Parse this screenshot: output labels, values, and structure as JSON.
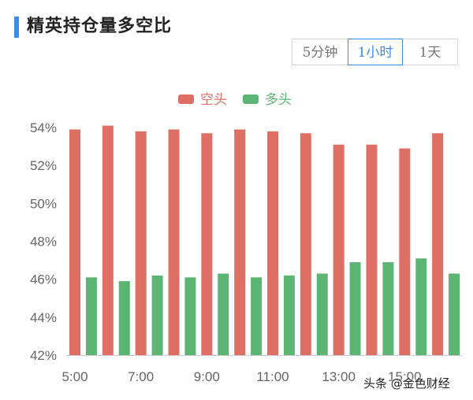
{
  "header": {
    "title": "精英持仓量多空比",
    "accent_color": "#3d8de4"
  },
  "tabs": [
    {
      "label": "5分钟",
      "active": false
    },
    {
      "label": "1小时",
      "active": true
    },
    {
      "label": "1天",
      "active": false
    }
  ],
  "watermark": "头条 @金色财经",
  "chart_data": {
    "type": "bar",
    "categories": [
      "5:00",
      "6:00",
      "7:00",
      "8:00",
      "9:00",
      "10:00",
      "11:00",
      "12:00",
      "13:00",
      "14:00",
      "15:00",
      "16:00"
    ],
    "x_tick_labels": [
      "5:00",
      "7:00",
      "9:00",
      "11:00",
      "13:00",
      "15:00"
    ],
    "series": [
      {
        "name": "空头",
        "color": "#de6f64",
        "values": [
          53.9,
          54.1,
          53.8,
          53.9,
          53.7,
          53.9,
          53.8,
          53.7,
          53.1,
          53.1,
          52.9,
          53.7
        ]
      },
      {
        "name": "多头",
        "color": "#5db574",
        "values": [
          46.1,
          45.9,
          46.2,
          46.1,
          46.3,
          46.1,
          46.2,
          46.3,
          46.9,
          46.9,
          47.1,
          46.3
        ]
      }
    ],
    "ylim": [
      42,
      54
    ],
    "y_ticks": [
      42,
      44,
      46,
      48,
      50,
      52,
      54
    ],
    "y_tick_suffix": "%",
    "xlabel": "",
    "ylabel": "",
    "legend_position": "top-center",
    "grid": false
  }
}
